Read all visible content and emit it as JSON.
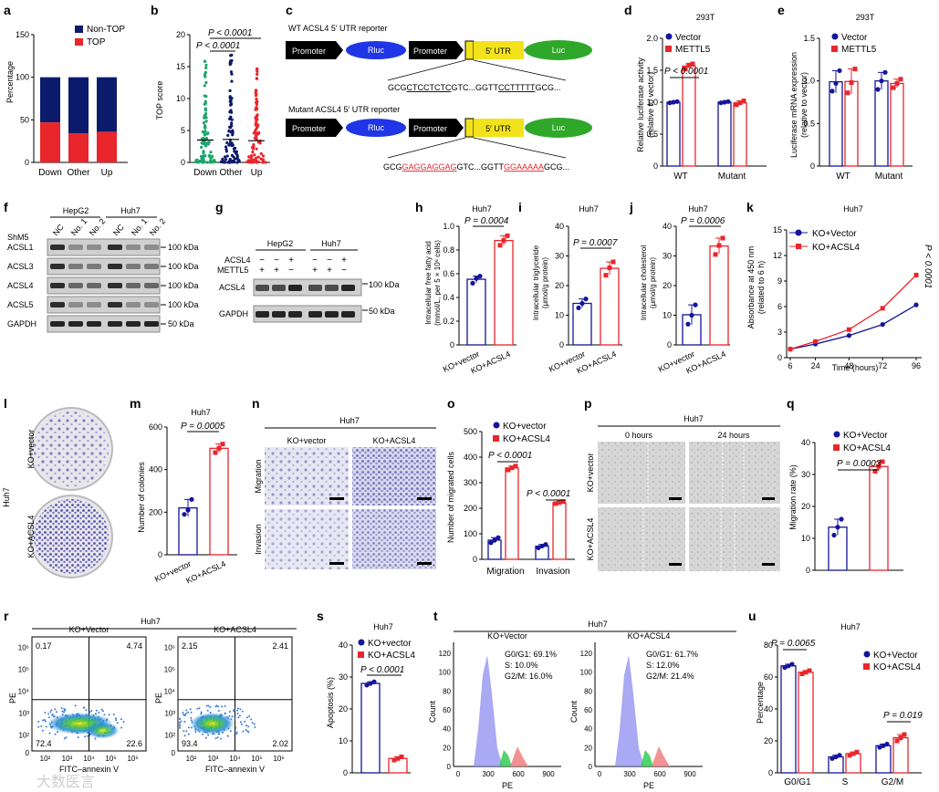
{
  "colors": {
    "blue": "#14149c",
    "red": "#e8262b",
    "green": "#1aa56b",
    "navy": "#0b1a6b",
    "rluc": "#1f35e6",
    "utr": "#f2e21b",
    "luc": "#2fa829",
    "gray": "#999999"
  },
  "panels": {
    "a": {
      "label": "a",
      "ylabel": "Percentage",
      "yticks": [
        "0",
        "50",
        "100",
        "150"
      ],
      "categories": [
        "Down",
        "Other",
        "Up"
      ],
      "legend": [
        "Non-TOP",
        "TOP"
      ]
    },
    "b": {
      "label": "b",
      "ylabel": "TOP score",
      "yticks": [
        "0",
        "5",
        "10",
        "15",
        "20"
      ],
      "categories": [
        "Down",
        "Other",
        "Up"
      ],
      "p1": "P < 0.0001",
      "p2": "P < 0.0001"
    },
    "c": {
      "label": "c",
      "wt_title": "WT ACSL4 5′ UTR reporter",
      "mut_title": "Mutant ACSL4 5′ UTR reporter",
      "promoter": "Promoter",
      "rluc": "Rluc",
      "utr": "5′ UTR",
      "luc": "Luc",
      "wt_seq": {
        "a": "GCG",
        "b": "CTCCTCTC",
        "c": "GTC...GGTT",
        "d": "CCTTTTT",
        "e": "GCG..."
      },
      "mut_seq": {
        "a": "GCG",
        "b": "GAGGAGGAG",
        "c": "GTC...GGTT",
        "d": "GGAAAAA",
        "e": "GCG..."
      }
    },
    "d": {
      "label": "d",
      "title": "293T",
      "ylabel": "Relative luciferase activity",
      "ylabel2": "(relative to vector)",
      "yticks": [
        "0",
        "0.5",
        "1.0",
        "1.5",
        "2.0"
      ],
      "categories": [
        "WT",
        "Mutant"
      ],
      "legend": [
        "Vector",
        "METTL5"
      ],
      "p": "P < 0.0001"
    },
    "e": {
      "label": "e",
      "title": "293T",
      "ylabel": "Luciferase mRNA expression",
      "ylabel2": "(relative to vector)",
      "yticks": [
        "0",
        "0.5",
        "1.0",
        "1.5"
      ],
      "categories": [
        "WT",
        "Mutant"
      ],
      "legend": [
        "Vector",
        "METTL5"
      ]
    },
    "f": {
      "label": "f",
      "cells": [
        "HepG2",
        "Huh7"
      ],
      "shm5": "ShM5",
      "lanes": [
        "NC",
        "No. 1",
        "No. 2",
        "NC",
        "No. 1",
        "No. 2"
      ],
      "bands": [
        "ACSL1",
        "ACSL3",
        "ACSL4",
        "ACSL5",
        "GAPDH"
      ],
      "sizes": [
        "100 kDa",
        "100 kDa",
        "100 kDa",
        "100 kDa",
        "50 kDa"
      ]
    },
    "g": {
      "label": "g",
      "cells": [
        "HepG2",
        "Huh7"
      ],
      "row1": "ACSL4",
      "row2": "METTL5",
      "signs1": [
        "−",
        "−",
        "+",
        "−",
        "−",
        "+"
      ],
      "signs2": [
        "+",
        "+",
        "−",
        "+",
        "+",
        "−"
      ],
      "bands": [
        "ACSL4",
        "GAPDH"
      ],
      "sizes": [
        "100 kDa",
        "50 kDa"
      ]
    },
    "h": {
      "label": "h",
      "title": "Huh7",
      "ylabel": "Intracellular free fatty acid",
      "ylabel2": "(mmol/L, per 5 × 10⁶ cells)",
      "yticks": [
        "0",
        "0.2",
        "0.4",
        "0.6",
        "0.8",
        "1.0"
      ],
      "categories": [
        "KO+vector",
        "KO+ACSL4"
      ],
      "p": "P = 0.0004"
    },
    "i": {
      "label": "i",
      "title": "Huh7",
      "ylabel": "Intracellular triglyceride",
      "ylabel2": "(μmol/g protein)",
      "yticks": [
        "0",
        "10",
        "20",
        "30",
        "40"
      ],
      "categories": [
        "KO+vector",
        "KO+ACSL4"
      ],
      "p": "P = 0.0007"
    },
    "j": {
      "label": "j",
      "title": "Huh7",
      "ylabel": "Intracellular cholesterol",
      "ylabel2": "(μmol/g protein)",
      "yticks": [
        "0",
        "10",
        "20",
        "30",
        "40"
      ],
      "categories": [
        "KO+vector",
        "KO+ACSL4"
      ],
      "p": "P = 0.0006"
    },
    "k": {
      "label": "k",
      "title": "Huh7",
      "ylabel": "Absorbance at 450 nm",
      "ylabel2": "(related to 6 h)",
      "yticks": [
        "0",
        "3",
        "6",
        "9",
        "12",
        "15"
      ],
      "xticks": [
        "6",
        "24",
        "48",
        "72",
        "96"
      ],
      "xlabel": "Time (hours)",
      "legend": [
        "KO+Vector",
        "KO+ACSL4"
      ],
      "p": "P < 0.0001"
    },
    "l": {
      "label": "l",
      "cell": "Huh7",
      "rows": [
        "KO+vector",
        "KO+ACSL4"
      ]
    },
    "m": {
      "label": "m",
      "title": "Huh7",
      "ylabel": "Number of colonies",
      "yticks": [
        "0",
        "200",
        "400",
        "600"
      ],
      "categories": [
        "KO+vector",
        "KO+ACSL4"
      ],
      "p": "P = 0.0005"
    },
    "n": {
      "label": "n",
      "title": "Huh7",
      "cols": [
        "KO+vector",
        "KO+ACSL4"
      ],
      "rows": [
        "Migration",
        "Invasion"
      ]
    },
    "o": {
      "label": "o",
      "ylabel": "Number of migrated cells",
      "yticks": [
        "0",
        "100",
        "200",
        "300",
        "400",
        "500"
      ],
      "categories": [
        "Migration",
        "Invasion"
      ],
      "legend": [
        "KO+vector",
        "KO+ACSL4"
      ],
      "p1": "P < 0.0001",
      "p2": "P < 0.0001"
    },
    "p": {
      "label": "p",
      "title": "Huh7",
      "cols": [
        "0 hours",
        "24 hours"
      ],
      "rows": [
        "KO+vector",
        "KO+ACSL4"
      ]
    },
    "q": {
      "label": "q",
      "ylabel": "Migration rate (%)",
      "yticks": [
        "0",
        "10",
        "20",
        "30",
        "40"
      ],
      "legend": [
        "KO+Vector",
        "KO+ACSL4"
      ],
      "p": "P = 0.0003"
    },
    "r": {
      "label": "r",
      "title": "Huh7",
      "plots": [
        {
          "title": "KO+Vector",
          "q": [
            "0.17",
            "4.74",
            "72.4",
            "22.6"
          ]
        },
        {
          "title": "KO+ACSL4",
          "q": [
            "2.15",
            "2.41",
            "93.4",
            "2.02"
          ]
        }
      ],
      "ylabel": "PE",
      "xlabel": "FITC–annexin V",
      "ticks": [
        "10²",
        "10³",
        "10⁴",
        "10⁵",
        "10⁶"
      ],
      "zero": "0"
    },
    "s": {
      "label": "s",
      "title": "Huh7",
      "ylabel": "Apoptosis (%)",
      "yticks": [
        "0",
        "10",
        "20",
        "30",
        "40"
      ],
      "legend": [
        "KO+vector",
        "KO+ACSL4"
      ],
      "p": "P < 0.0001"
    },
    "t": {
      "label": "t",
      "title": "Huh7",
      "plots": [
        {
          "title": "KO+Vector",
          "g1": "G0/G1: 69.1%",
          "s": "S: 10.0%",
          "g2": "G2/M: 16.0%"
        },
        {
          "title": "KO+ACSL4",
          "g1": "G0/G1: 61.7%",
          "s": "S: 12.0%",
          "g2": "G2/M: 21.4%"
        }
      ],
      "ylabel": "Count",
      "xlabel": "PE",
      "xticks": [
        "0",
        "300",
        "600",
        "900"
      ],
      "yticks": [
        "0",
        "20",
        "40",
        "60",
        "80",
        "100",
        "120"
      ]
    },
    "u": {
      "label": "u",
      "title": "Huh7",
      "ylabel": "Percentage",
      "yticks": [
        "0",
        "20",
        "40",
        "60",
        "80"
      ],
      "categories": [
        "G0/G1",
        "S",
        "G2/M"
      ],
      "legend": [
        "KO+Vector",
        "KO+ACSL4"
      ],
      "p1": "P = 0.0065",
      "p2": "P = 0.019"
    }
  },
  "watermark": "大数医言",
  "chart_data": [
    {
      "type": "bar",
      "panel": "a",
      "title": "",
      "xlabel": "",
      "ylabel": "Percentage",
      "ylim": [
        0,
        150
      ],
      "categories": [
        "Down",
        "Other",
        "Up"
      ],
      "stacked": true,
      "series": [
        {
          "name": "TOP",
          "values": [
            47,
            34,
            36
          ]
        },
        {
          "name": "Non-TOP",
          "values": [
            53,
            66,
            64
          ]
        }
      ]
    },
    {
      "type": "scatter",
      "panel": "b",
      "ylabel": "TOP score",
      "ylim": [
        0,
        20
      ],
      "categories": [
        "Down",
        "Other",
        "Up"
      ],
      "max": [
        17.5,
        17.2,
        15.6
      ],
      "median": [
        3.5,
        3.6,
        3.4
      ]
    },
    {
      "type": "bar",
      "panel": "d",
      "title": "293T",
      "ylabel": "Relative luciferase activity",
      "ylim": [
        0,
        2
      ],
      "categories": [
        "WT",
        "Mutant"
      ],
      "series": [
        {
          "name": "Vector",
          "values": [
            1.0,
            1.0
          ],
          "points": [
            [
              0.99,
              1.0,
              1.01
            ],
            [
              0.99,
              1.0,
              1.01
            ]
          ]
        },
        {
          "name": "METTL5",
          "values": [
            1.57,
            0.99
          ],
          "points": [
            [
              1.52,
              1.58,
              1.6
            ],
            [
              0.96,
              0.99,
              1.02
            ]
          ]
        }
      ]
    },
    {
      "type": "bar",
      "panel": "e",
      "title": "293T",
      "ylabel": "Luciferase mRNA expression",
      "ylim": [
        0,
        1.5
      ],
      "categories": [
        "WT",
        "Mutant"
      ],
      "series": [
        {
          "name": "Vector",
          "values": [
            1.0,
            1.0
          ],
          "points": [
            [
              0.88,
              0.97,
              1.12
            ],
            [
              0.9,
              1.0,
              1.1
            ]
          ]
        },
        {
          "name": "METTL5",
          "values": [
            1.0,
            0.98
          ],
          "points": [
            [
              0.86,
              0.98,
              1.14
            ],
            [
              0.92,
              0.97,
              1.02
            ]
          ]
        }
      ]
    },
    {
      "type": "bar",
      "panel": "h",
      "title": "Huh7",
      "ylabel": "Intracellular free fatty acid",
      "ylim": [
        0,
        1.0
      ],
      "categories": [
        "KO+vector",
        "KO+ACSL4"
      ],
      "values": [
        0.55,
        0.88
      ],
      "points": [
        [
          0.52,
          0.56,
          0.58
        ],
        [
          0.84,
          0.88,
          0.92
        ]
      ]
    },
    {
      "type": "bar",
      "panel": "i",
      "title": "Huh7",
      "ylabel": "Intracellular triglyceride",
      "ylim": [
        0,
        40
      ],
      "categories": [
        "KO+vector",
        "KO+ACSL4"
      ],
      "values": [
        14,
        26
      ],
      "points": [
        [
          12.5,
          14,
          15.5
        ],
        [
          23.5,
          26,
          28
        ]
      ]
    },
    {
      "type": "bar",
      "panel": "j",
      "title": "Huh7",
      "ylabel": "Intracellular cholesterol",
      "ylim": [
        0,
        40
      ],
      "categories": [
        "KO+vector",
        "KO+ACSL4"
      ],
      "values": [
        10.5,
        33.5
      ],
      "points": [
        [
          7,
          10,
          13.5
        ],
        [
          30.5,
          33.5,
          36
        ]
      ]
    },
    {
      "type": "line",
      "panel": "k",
      "title": "Huh7",
      "xlabel": "Time (hours)",
      "ylabel": "Absorbance at 450 nm",
      "ylim": [
        0,
        15
      ],
      "x": [
        6,
        24,
        48,
        72,
        96
      ],
      "series": [
        {
          "name": "KO+Vector",
          "values": [
            1.0,
            1.6,
            2.6,
            3.9,
            6.2
          ]
        },
        {
          "name": "KO+ACSL4",
          "values": [
            1.0,
            1.9,
            3.3,
            5.8,
            9.7
          ]
        }
      ]
    },
    {
      "type": "bar",
      "panel": "m",
      "title": "Huh7",
      "ylabel": "Number of colonies",
      "ylim": [
        0,
        600
      ],
      "categories": [
        "KO+vector",
        "KO+ACSL4"
      ],
      "values": [
        220,
        500
      ],
      "points": [
        [
          190,
          210,
          260
        ],
        [
          480,
          500,
          520
        ]
      ]
    },
    {
      "type": "bar",
      "panel": "o",
      "ylabel": "Number of migrated cells",
      "ylim": [
        0,
        500
      ],
      "categories": [
        "Migration",
        "Invasion"
      ],
      "series": [
        {
          "name": "KO+vector",
          "values": [
            75,
            52
          ],
          "points": [
            [
              65,
              75,
              85
            ],
            [
              45,
              52,
              58
            ]
          ]
        },
        {
          "name": "KO+ACSL4",
          "values": [
            358,
            222
          ],
          "points": [
            [
              350,
              358,
              365
            ],
            [
              218,
              222,
              226
            ]
          ]
        }
      ]
    },
    {
      "type": "bar",
      "panel": "q",
      "ylabel": "Migration rate (%)",
      "ylim": [
        0,
        40
      ],
      "categories": [
        "KO+Vector",
        "KO+ACSL4"
      ],
      "values": [
        13.5,
        32.5
      ],
      "points": [
        [
          11,
          13.5,
          16
        ],
        [
          31,
          32.5,
          34
        ]
      ]
    },
    {
      "type": "scatter",
      "panel": "r",
      "title": "Huh7",
      "quadrants": [
        {
          "name": "KO+Vector",
          "UL": 0.17,
          "UR": 4.74,
          "LL": 72.4,
          "LR": 22.6
        },
        {
          "name": "KO+ACSL4",
          "UL": 2.15,
          "UR": 2.41,
          "LL": 93.4,
          "LR": 2.02
        }
      ]
    },
    {
      "type": "bar",
      "panel": "s",
      "title": "Huh7",
      "ylabel": "Apoptosis (%)",
      "ylim": [
        0,
        40
      ],
      "categories": [
        "KO+vector",
        "KO+ACSL4"
      ],
      "values": [
        28,
        4.5
      ],
      "points": [
        [
          27.5,
          28,
          28.5
        ],
        [
          4,
          4.5,
          5
        ]
      ]
    },
    {
      "type": "area",
      "panel": "t",
      "title": "Huh7",
      "xlabel": "PE",
      "ylabel": "Count",
      "xlim": [
        0,
        1000
      ],
      "ylim": [
        0,
        120
      ],
      "series": [
        {
          "name": "KO+Vector",
          "G0/G1": 69.1,
          "S": 10.0,
          "G2/M": 16.0
        },
        {
          "name": "KO+ACSL4",
          "G0/G1": 61.7,
          "S": 12.0,
          "G2/M": 21.4
        }
      ]
    },
    {
      "type": "bar",
      "panel": "u",
      "title": "Huh7",
      "ylabel": "Percentage",
      "ylim": [
        0,
        80
      ],
      "categories": [
        "G0/G1",
        "S",
        "G2/M"
      ],
      "series": [
        {
          "name": "KO+Vector",
          "values": [
            67,
            10,
            17
          ],
          "points": [
            [
              66,
              67,
              68
            ],
            [
              9,
              10,
              11
            ],
            [
              16,
              17,
              18
            ]
          ]
        },
        {
          "name": "KO+ACSL4",
          "values": [
            63,
            12,
            22
          ],
          "points": [
            [
              62,
              63,
              64
            ],
            [
              11,
              12,
              13
            ],
            [
              20,
              22,
              24
            ]
          ]
        }
      ]
    }
  ]
}
